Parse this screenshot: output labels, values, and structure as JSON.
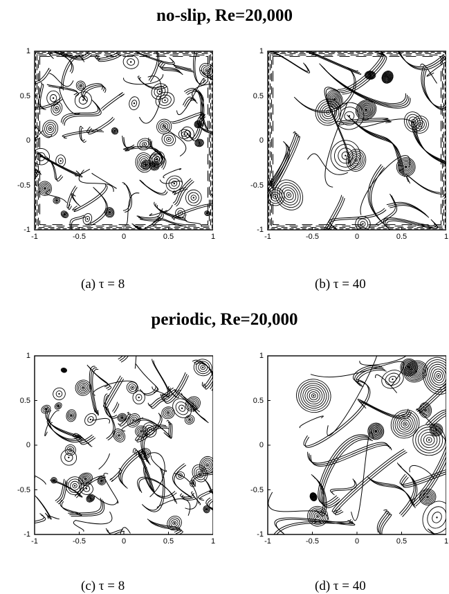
{
  "figure": {
    "sections": [
      {
        "title": "no-slip, Re=20,000"
      },
      {
        "title": "periodic, Re=20,000"
      }
    ],
    "panels": [
      {
        "label": "(a)",
        "caption": "(a)  τ = 8",
        "tau": 8,
        "bc": "no-slip"
      },
      {
        "label": "(b)",
        "caption": "(b)  τ = 40",
        "tau": 40,
        "bc": "no-slip"
      },
      {
        "label": "(c)",
        "caption": "(c)  τ = 8",
        "tau": 8,
        "bc": "periodic"
      },
      {
        "label": "(d)",
        "caption": "(d)  τ = 40",
        "tau": 40,
        "bc": "periodic"
      }
    ],
    "axis": {
      "xlim": [
        -1,
        1
      ],
      "ylim": [
        -1,
        1
      ],
      "xticks": [
        "-1",
        "-0.5",
        "0",
        "0.5",
        "1"
      ],
      "yticks": [
        "1",
        "0.5",
        "0",
        "-0.5",
        "-1"
      ]
    }
  }
}
